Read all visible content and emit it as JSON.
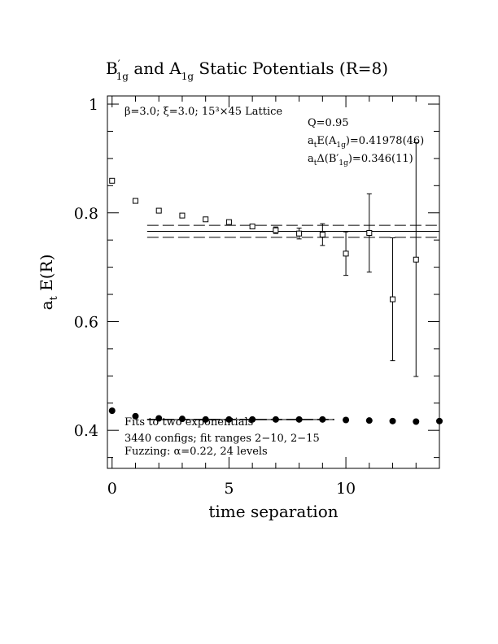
{
  "chart_data": {
    "type": "scatter",
    "title_parts": {
      "a": "B",
      "prime": "′",
      "sub1": "1g",
      "mid": " and A",
      "sub2": "1g",
      "end": " Static Potentials (R=8)"
    },
    "xlabel": "time separation",
    "ylabel_parts": {
      "a": "a",
      "sub": "t",
      "rest": " E(R)"
    },
    "xlim": [
      -0.2,
      14
    ],
    "ylim": [
      0.33,
      1.015
    ],
    "xticks": [
      {
        "value": 0,
        "label": "0"
      },
      {
        "value": 5,
        "label": "5"
      },
      {
        "value": 10,
        "label": "10"
      }
    ],
    "yticks": [
      {
        "value": 0.4,
        "label": "0.4"
      },
      {
        "value": 0.6,
        "label": "0.6"
      },
      {
        "value": 0.8,
        "label": "0.8"
      },
      {
        "value": 1.0,
        "label": "1"
      }
    ],
    "annotations": {
      "params": "β=3.0; ξ=3.0; 15³×45 Lattice",
      "q": "Q=0.95",
      "energy": {
        "a": "a",
        "sub1": "t",
        "mid": "E(A",
        "sub2": "1g",
        "end": ")=0.41978(46)"
      },
      "gap": {
        "a": "a",
        "sub1": "t",
        "mid": "Δ(B′",
        "sub2": "1g",
        "end": ")=0.346(11)"
      },
      "fit_line1": "Fits to two exponentials",
      "fit_line2": "3440 configs; fit ranges 2−10, 2−15",
      "fit_line3": "Fuzzing: α=0.22, 24 levels"
    },
    "series": [
      {
        "marker": "open-square",
        "x": [
          0,
          1,
          2,
          3,
          4,
          5,
          6,
          7,
          8,
          9,
          10,
          11,
          12,
          13
        ],
        "y": [
          0.859,
          0.822,
          0.804,
          0.795,
          0.788,
          0.783,
          0.775,
          0.768,
          0.762,
          0.76,
          0.725,
          0.763,
          0.641,
          0.714
        ],
        "err": [
          0.002,
          0.002,
          0.002,
          0.002,
          0.003,
          0.003,
          0.004,
          0.006,
          0.01,
          0.02,
          0.04,
          0.072,
          0.113,
          0.215
        ]
      },
      {
        "marker": "filled-circle",
        "x": [
          0,
          1,
          2,
          3,
          4,
          5,
          6,
          7,
          8,
          9,
          10,
          11,
          12,
          13,
          14
        ],
        "y": [
          0.436,
          0.426,
          0.422,
          0.421,
          0.42,
          0.42,
          0.42,
          0.42,
          0.42,
          0.42,
          0.419,
          0.418,
          0.417,
          0.416,
          0.417
        ],
        "err": [
          0,
          0,
          0,
          0,
          0,
          0,
          0,
          0,
          0,
          0,
          0,
          0,
          0,
          0,
          0
        ]
      }
    ],
    "fit_bands": [
      {
        "x_range": [
          1.5,
          14
        ],
        "center": 0.766,
        "upper": 0.777,
        "lower": 0.755
      },
      {
        "x_range": [
          1.5,
          9.5
        ],
        "center": 0.4198,
        "upper": 0.4203,
        "lower": 0.4193
      }
    ]
  }
}
